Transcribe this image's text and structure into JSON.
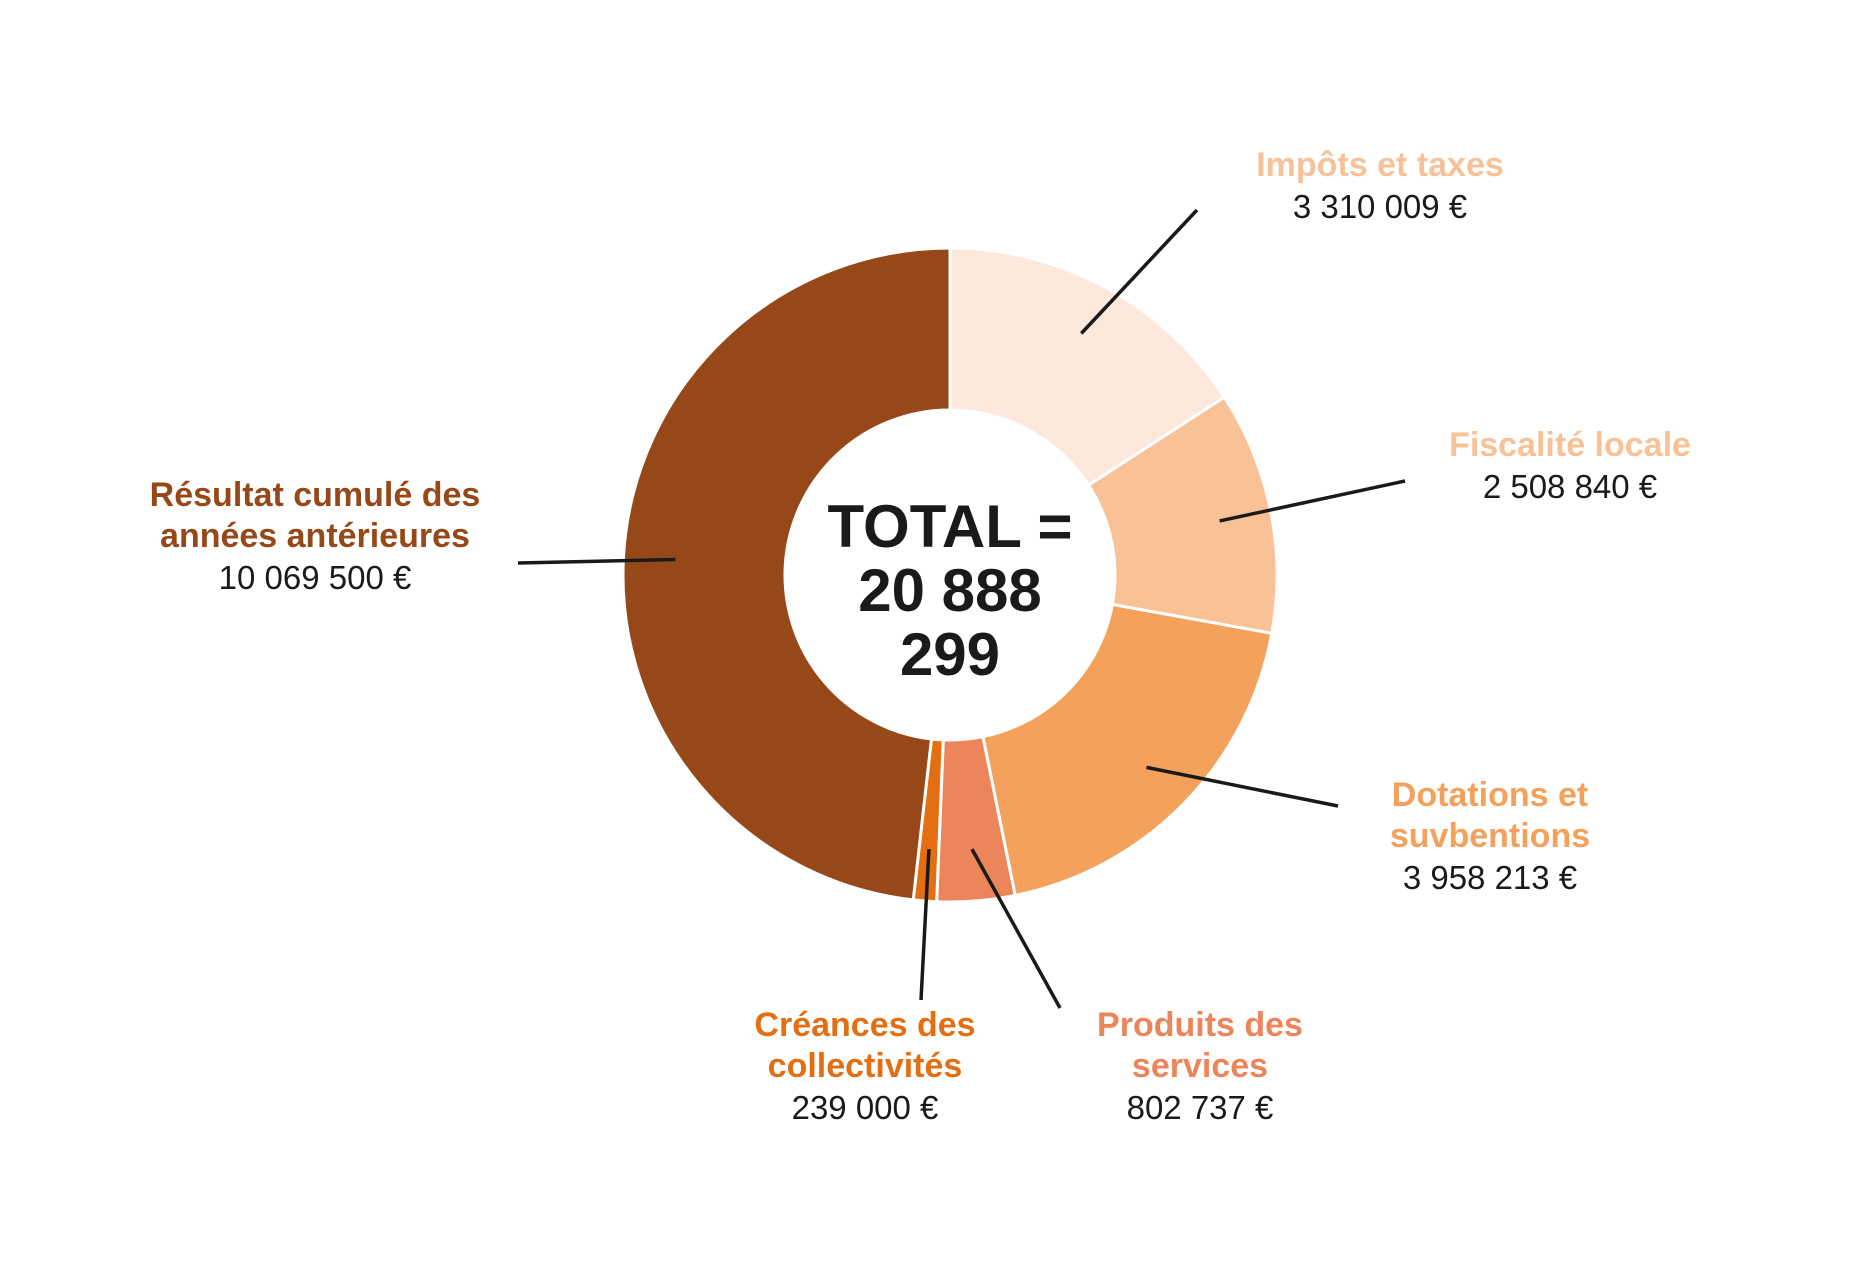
{
  "center": {
    "line1": "TOTAL =",
    "line2": "20 888 299"
  },
  "chart_data": {
    "type": "pie",
    "donut": true,
    "unit": "€",
    "total": 20888299,
    "slices": [
      {
        "label": "Impôts et taxes",
        "value": 3310009,
        "value_text": "3 310 009 €",
        "color": "#FCE9DB"
      },
      {
        "label": "Fiscalité locale",
        "value": 2508840,
        "value_text": "2 508 840 €",
        "color": "#F8C196"
      },
      {
        "label": "Dotations et suvbentions",
        "value": 3958213,
        "value_text": "3 958 213 €",
        "color": "#F3A15B"
      },
      {
        "label": "Produits des services",
        "value": 802737,
        "value_text": "802 737 €",
        "color": "#EC855A"
      },
      {
        "label": "Créances des collectivités",
        "value": 239000,
        "value_text": "239 000 €",
        "color": "#E46F12"
      },
      {
        "label": "Résultat cumulé des années antérieures",
        "value": 10069500,
        "value_text": "10 069 500 €",
        "color": "#974818"
      }
    ]
  }
}
